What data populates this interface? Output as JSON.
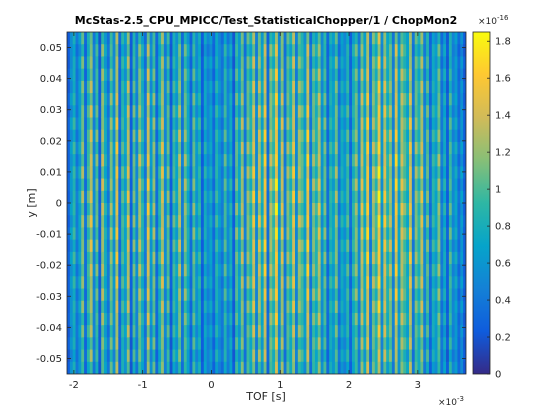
{
  "chart_data": {
    "type": "heatmap",
    "title": "McStas-2.5_CPU_MPICC/Test_StatisticalChopper/1 / ChopMon2",
    "xlabel": "TOF [s]",
    "ylabel": "y [m]",
    "x_multiplier": "×10",
    "x_multiplier_exp": "-3",
    "colorbar_multiplier": "×10",
    "colorbar_multiplier_exp": "-16",
    "xlim": [
      -2.1,
      3.7
    ],
    "ylim": [
      -0.055,
      0.055
    ],
    "clim": [
      0,
      1.85
    ],
    "x_ticks": [
      -2,
      -1,
      0,
      1,
      2,
      3
    ],
    "x_tick_labels": [
      "-2",
      "-1",
      "0",
      "1",
      "2",
      "3"
    ],
    "y_ticks": [
      -0.05,
      -0.04,
      -0.03,
      -0.02,
      -0.01,
      0,
      0.01,
      0.02,
      0.03,
      0.04,
      0.05
    ],
    "y_tick_labels": [
      "-0.05",
      "-0.04",
      "-0.03",
      "-0.02",
      "-0.01",
      "0",
      "0.01",
      "0.02",
      "0.03",
      "0.04",
      "0.05"
    ],
    "colorbar_ticks": [
      0,
      0.2,
      0.4,
      0.6,
      0.8,
      1,
      1.2,
      1.4,
      1.6,
      1.8
    ],
    "colorbar_tick_labels": [
      "0",
      "0.2",
      "0.4",
      "0.6",
      "0.8",
      "1",
      "1.2",
      "1.4",
      "1.6",
      "1.8"
    ],
    "colormap": "parula",
    "grid": false,
    "column_profile": [
      0.3,
      0.7,
      1.0,
      0.5,
      0.8,
      1.3,
      0.4,
      1.1,
      1.5,
      0.6,
      1.2,
      0.3,
      1.4,
      0.9,
      0.5,
      1.3,
      0.7,
      1.6,
      0.4,
      1.1,
      0.8,
      1.5,
      0.3,
      1.2,
      0.6,
      1.4,
      1.0,
      0.5,
      1.6,
      0.7,
      1.3,
      0.4,
      1.0,
      1.5,
      0.6,
      1.2,
      0.3,
      1.1,
      0.8,
      1.4,
      0.5,
      1.3,
      0.9,
      0.4,
      1.2,
      0.7,
      1.0,
      0.3,
      0.9,
      0.6,
      0.8,
      0.4,
      1.0,
      0.7,
      0.5,
      1.1,
      0.6,
      0.9,
      0.3,
      1.2,
      0.8,
      1.4,
      0.5,
      1.3,
      1.0,
      1.6,
      0.6,
      1.5,
      0.9,
      1.7,
      0.4,
      1.4,
      1.1,
      1.8,
      0.7,
      1.5,
      0.5,
      1.3,
      1.0,
      1.6,
      0.6,
      1.4,
      1.2,
      0.8,
      1.7,
      0.5,
      1.3,
      1.0,
      1.5,
      0.7,
      1.2,
      0.4,
      1.0,
      0.8,
      1.3,
      0.5,
      0.9,
      0.7,
      1.1,
      0.4,
      1.0,
      1.3,
      0.6,
      1.5,
      0.9,
      1.7,
      0.5,
      1.4,
      1.1,
      1.8,
      0.7,
      1.6,
      1.0,
      1.4,
      0.6,
      1.7,
      0.8,
      1.5,
      1.2,
      0.9,
      1.6,
      0.5,
      1.3,
      1.0,
      1.5,
      0.6,
      1.2,
      0.4,
      1.0,
      0.8,
      1.3,
      0.5,
      0.9,
      0.3,
      1.1,
      0.6,
      0.8,
      0.4,
      0.7,
      0.3
    ]
  }
}
